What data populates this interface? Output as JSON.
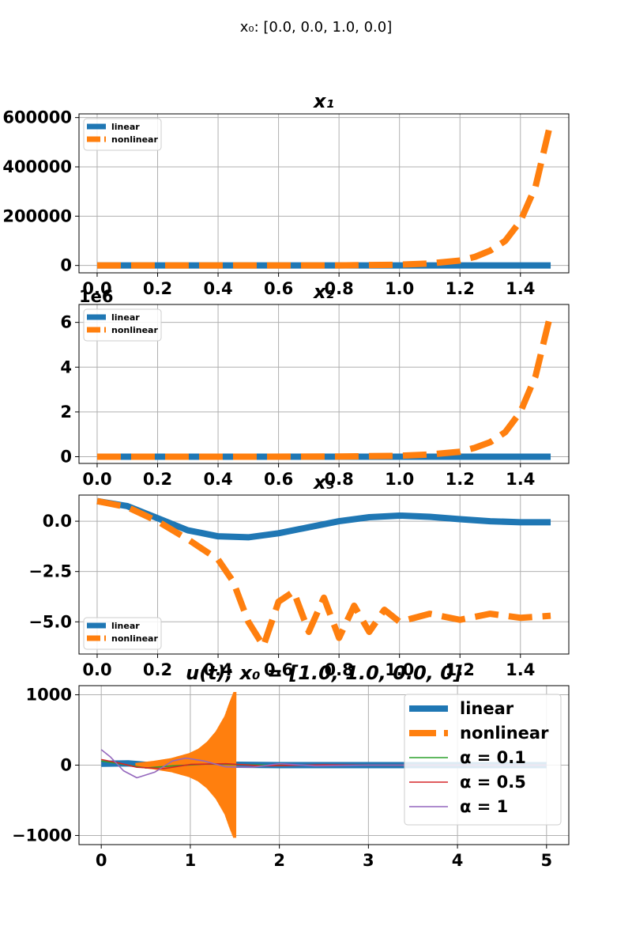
{
  "suptitle": "x₀: [0.0, 0.0, 1.0, 0.0]",
  "colors": {
    "linear": "#1f77b4",
    "nonlinear": "#ff7f0e",
    "alpha01": "#2ca02c",
    "alpha05": "#d62728",
    "alpha1": "#9467bd",
    "grid": "#b0b0b0"
  },
  "chart_data": [
    {
      "type": "line",
      "title": "x₁",
      "xlim": [
        -0.06,
        1.56
      ],
      "ylim": [
        -30000,
        615000
      ],
      "xticks": [
        0.0,
        0.2,
        0.4,
        0.6,
        0.8,
        1.0,
        1.2,
        1.4
      ],
      "xtick_labels": [
        "0.0",
        "0.2",
        "0.4",
        "0.6",
        "0.8",
        "1.0",
        "1.2",
        "1.4"
      ],
      "yticks": [
        0,
        200000,
        400000,
        600000
      ],
      "ytick_labels": [
        "0",
        "200000",
        "400000",
        "600000"
      ],
      "offset_text": "",
      "grid": true,
      "legend_position": "upper left",
      "legend_size": "small",
      "series": [
        {
          "name": "linear",
          "style": "solid-thick",
          "x": [
            0,
            0.5,
            1.0,
            1.5
          ],
          "y": [
            0,
            0,
            0,
            0
          ]
        },
        {
          "name": "nonlinear",
          "style": "dashed-thick",
          "x": [
            0,
            0.5,
            0.8,
            1.0,
            1.1,
            1.2,
            1.25,
            1.3,
            1.35,
            1.4,
            1.45,
            1.5
          ],
          "y": [
            0,
            0,
            200,
            3000,
            8000,
            20000,
            35000,
            60000,
            100000,
            180000,
            320000,
            580000
          ]
        }
      ]
    },
    {
      "type": "line",
      "title": "x₂",
      "xlim": [
        -0.06,
        1.56
      ],
      "ylim": [
        -0.3,
        6.8
      ],
      "xticks": [
        0.0,
        0.2,
        0.4,
        0.6,
        0.8,
        1.0,
        1.2,
        1.4
      ],
      "xtick_labels": [
        "0.0",
        "0.2",
        "0.4",
        "0.6",
        "0.8",
        "1.0",
        "1.2",
        "1.4"
      ],
      "yticks": [
        0,
        2,
        4,
        6
      ],
      "ytick_labels": [
        "0",
        "2",
        "4",
        "6"
      ],
      "offset_text": "1e6",
      "grid": true,
      "legend_position": "upper left",
      "legend_size": "small",
      "series": [
        {
          "name": "linear",
          "style": "solid-thick",
          "x": [
            0,
            0.5,
            1.0,
            1.5
          ],
          "y": [
            0,
            0,
            0,
            0
          ]
        },
        {
          "name": "nonlinear",
          "style": "dashed-thick",
          "x": [
            0,
            0.5,
            0.8,
            1.0,
            1.1,
            1.2,
            1.25,
            1.3,
            1.35,
            1.4,
            1.45,
            1.5
          ],
          "y": [
            0,
            0,
            0.01,
            0.04,
            0.1,
            0.22,
            0.4,
            0.65,
            1.1,
            2.0,
            3.6,
            6.4
          ]
        }
      ]
    },
    {
      "type": "line",
      "title": "x₃",
      "xlim": [
        -0.06,
        1.56
      ],
      "ylim": [
        -6.6,
        1.3
      ],
      "xticks": [
        0.0,
        0.2,
        0.4,
        0.6,
        0.8,
        1.0,
        1.2,
        1.4
      ],
      "xtick_labels": [
        "0.0",
        "0.2",
        "0.4",
        "0.6",
        "0.8",
        "1.0",
        "1.2",
        "1.4"
      ],
      "yticks": [
        0.0,
        -2.5,
        -5.0
      ],
      "ytick_labels": [
        "0.0",
        "−2.5",
        "−5.0"
      ],
      "offset_text": "",
      "grid": true,
      "legend_position": "lower left",
      "legend_size": "small",
      "series": [
        {
          "name": "linear",
          "style": "solid-thick",
          "x": [
            0,
            0.1,
            0.2,
            0.3,
            0.4,
            0.5,
            0.6,
            0.7,
            0.8,
            0.9,
            1.0,
            1.1,
            1.2,
            1.3,
            1.4,
            1.5
          ],
          "y": [
            1.0,
            0.75,
            0.15,
            -0.45,
            -0.75,
            -0.8,
            -0.6,
            -0.3,
            0.0,
            0.2,
            0.28,
            0.22,
            0.1,
            0.0,
            -0.05,
            -0.05
          ]
        },
        {
          "name": "nonlinear",
          "style": "dashed-thick",
          "x": [
            0,
            0.1,
            0.2,
            0.3,
            0.4,
            0.45,
            0.5,
            0.55,
            0.6,
            0.65,
            0.7,
            0.75,
            0.8,
            0.85,
            0.9,
            0.95,
            1.0,
            1.1,
            1.2,
            1.3,
            1.4,
            1.5
          ],
          "y": [
            1.0,
            0.7,
            0.0,
            -0.9,
            -1.9,
            -3.0,
            -5.0,
            -6.2,
            -4.0,
            -3.5,
            -5.5,
            -3.8,
            -5.8,
            -4.2,
            -5.5,
            -4.4,
            -5.0,
            -4.6,
            -4.9,
            -4.6,
            -4.8,
            -4.7
          ]
        }
      ]
    },
    {
      "type": "line",
      "title": "u(t); x₀ = [1.0, 1.0, 0.0, 0]",
      "xlim": [
        -0.25,
        5.25
      ],
      "ylim": [
        -1130,
        1130
      ],
      "xticks": [
        0,
        1,
        2,
        3,
        4,
        5
      ],
      "xtick_labels": [
        "0",
        "1",
        "2",
        "3",
        "4",
        "5"
      ],
      "yticks": [
        1000,
        0,
        -1000
      ],
      "ytick_labels": [
        "1000",
        "0",
        "−1000"
      ],
      "offset_text": "",
      "grid": true,
      "legend_position": "upper right",
      "legend_size": "large",
      "series": [
        {
          "name": "linear",
          "style": "solid-thick",
          "x": [
            0,
            0.3,
            0.6,
            0.9,
            1.2,
            1.5,
            2.0,
            3.0,
            4.0,
            5.0
          ],
          "y": [
            20,
            25,
            -5,
            -20,
            0,
            5,
            0,
            0,
            0,
            0
          ]
        },
        {
          "name": "nonlinear",
          "style": "oscillation-envelope",
          "x": [
            0.4,
            0.6,
            0.8,
            1.0,
            1.1,
            1.2,
            1.3,
            1.4,
            1.45,
            1.5
          ],
          "y": [
            30,
            60,
            100,
            170,
            230,
            330,
            480,
            700,
            880,
            1040
          ]
        },
        {
          "name": "α = 0.1",
          "style": "thin",
          "x": [
            0,
            0.2,
            0.5,
            0.8,
            1.2,
            1.6,
            2.0,
            3.0,
            5.0
          ],
          "y": [
            60,
            20,
            -40,
            -10,
            15,
            5,
            0,
            0,
            0
          ]
        },
        {
          "name": "α = 0.5",
          "style": "thin",
          "x": [
            0,
            0.2,
            0.4,
            0.7,
            1.0,
            1.4,
            1.8,
            2.5,
            3.0,
            5.0
          ],
          "y": [
            80,
            30,
            -30,
            -50,
            10,
            20,
            -10,
            5,
            0,
            0
          ]
        },
        {
          "name": "α = 1",
          "style": "thin",
          "x": [
            0,
            0.1,
            0.25,
            0.4,
            0.6,
            0.8,
            0.95,
            1.15,
            1.4,
            1.7,
            2.0,
            2.4,
            3.0,
            5.0
          ],
          "y": [
            220,
            120,
            -80,
            -180,
            -100,
            60,
            100,
            60,
            -25,
            -30,
            20,
            -10,
            0,
            0
          ]
        }
      ]
    }
  ]
}
